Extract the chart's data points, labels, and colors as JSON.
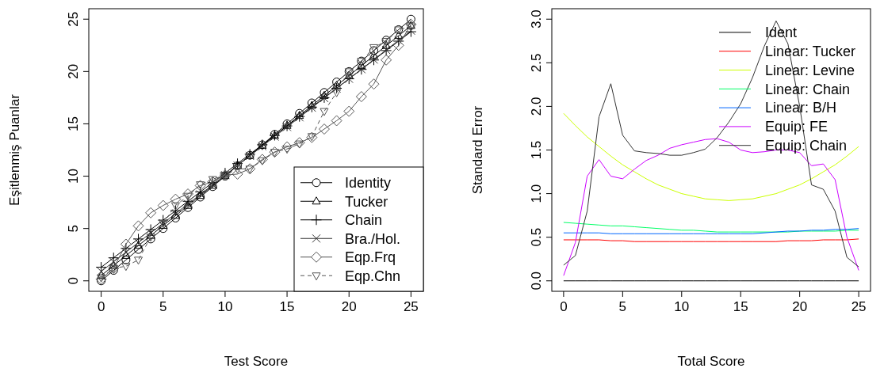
{
  "chart_data": [
    {
      "type": "line",
      "xlabel": "Test Score",
      "ylabel": "Eşitlenmiş Puanlar",
      "x": [
        0,
        1,
        2,
        3,
        4,
        5,
        6,
        7,
        8,
        9,
        10,
        11,
        12,
        13,
        14,
        15,
        16,
        17,
        18,
        19,
        20,
        21,
        22,
        23,
        24,
        25
      ],
      "xlim": [
        -1,
        26
      ],
      "ylim": [
        -1,
        26
      ],
      "xticks": [
        0,
        5,
        10,
        15,
        20,
        25
      ],
      "yticks": [
        0,
        5,
        10,
        15,
        20,
        25
      ],
      "legend": "bottom right",
      "series": [
        {
          "name": "Identity",
          "color": "#000000",
          "marker": "circle",
          "line_style": "solid",
          "values": [
            0,
            1,
            2,
            3,
            4,
            5,
            6,
            7,
            8,
            9,
            10,
            11,
            12,
            13,
            14,
            15,
            16,
            17,
            18,
            19,
            20,
            21,
            22,
            23,
            24,
            25
          ]
        },
        {
          "name": "Tucker",
          "color": "#000000",
          "marker": "triangle",
          "line_style": "solid",
          "values": [
            0.5,
            1.46,
            2.41,
            3.37,
            4.32,
            5.28,
            6.23,
            7.19,
            8.14,
            9.1,
            10.05,
            11.01,
            11.96,
            12.92,
            13.87,
            14.83,
            15.78,
            16.74,
            17.69,
            18.65,
            19.6,
            20.56,
            21.51,
            22.47,
            23.42,
            24.38
          ]
        },
        {
          "name": "Chain",
          "color": "#000000",
          "marker": "cross",
          "line_style": "solid",
          "values": [
            1.3,
            2.2,
            3.1,
            4.0,
            4.9,
            5.8,
            6.7,
            7.6,
            8.5,
            9.4,
            10.3,
            11.2,
            12.1,
            13.0,
            13.9,
            14.8,
            15.7,
            16.6,
            17.5,
            18.4,
            19.3,
            20.2,
            21.1,
            22.0,
            22.9,
            23.8
          ]
        },
        {
          "name": "Bra./Hol.",
          "color": "#333333",
          "marker": "x",
          "line_style": "solid",
          "values": [
            0.9,
            1.82,
            2.74,
            3.66,
            4.58,
            5.5,
            6.42,
            7.34,
            8.26,
            9.18,
            10.1,
            11.02,
            11.94,
            12.86,
            13.78,
            14.7,
            15.62,
            16.54,
            17.46,
            18.38,
            19.3,
            20.22,
            21.14,
            22.06,
            22.98,
            23.9
          ]
        },
        {
          "name": "Eqp.Frq",
          "color": "#555555",
          "marker": "diamond",
          "line_style": "solid",
          "values": [
            0.15,
            1.2,
            3.5,
            5.25,
            6.5,
            7.2,
            7.8,
            8.3,
            9.1,
            9.45,
            10.1,
            10.2,
            10.7,
            11.6,
            12.3,
            12.8,
            13.2,
            13.7,
            14.5,
            15.3,
            16.2,
            17.6,
            18.8,
            21.1,
            22.5,
            24.5
          ]
        },
        {
          "name": "Eqp.Chn",
          "color": "#555555",
          "marker": "triangle-down",
          "line_style": "dashed",
          "values": [
            0.3,
            1.2,
            1.4,
            2.0,
            4.2,
            5.5,
            7.2,
            8.1,
            9.2,
            9.7,
            10.1,
            10.7,
            10.7,
            11.5,
            12.3,
            12.6,
            13.1,
            13.8,
            16.2,
            18.0,
            20.0,
            21.0,
            22.3,
            22.9,
            24.0,
            24.3
          ]
        }
      ]
    },
    {
      "type": "line",
      "xlabel": "Total Score",
      "ylabel": "Standard Error",
      "x": [
        0,
        1,
        2,
        3,
        4,
        5,
        6,
        7,
        8,
        9,
        10,
        11,
        12,
        13,
        14,
        15,
        16,
        17,
        18,
        19,
        20,
        21,
        22,
        23,
        24,
        25
      ],
      "xlim": [
        -1,
        26
      ],
      "ylim": [
        -0.12,
        3.12
      ],
      "xticks": [
        0,
        5,
        10,
        15,
        20,
        25
      ],
      "yticks": [
        {
          "value": 0,
          "label": "0.0"
        },
        {
          "value": 0.5,
          "label": "0.5"
        },
        {
          "value": 1,
          "label": "1.0"
        },
        {
          "value": 1.5,
          "label": "1.5"
        },
        {
          "value": 2,
          "label": "2.0"
        },
        {
          "value": 2.5,
          "label": "2.5"
        },
        {
          "value": 3,
          "label": "3.0"
        }
      ],
      "legend": "top right",
      "series": [
        {
          "name": "Ident",
          "color": "#000000",
          "values": [
            0,
            0,
            0,
            0,
            0,
            0,
            0,
            0,
            0,
            0,
            0,
            0,
            0,
            0,
            0,
            0,
            0,
            0,
            0,
            0,
            0,
            0,
            0,
            0,
            0,
            0
          ]
        },
        {
          "name": "Linear: Tucker",
          "color": "#ff0000",
          "values": [
            0.47,
            0.47,
            0.47,
            0.47,
            0.46,
            0.46,
            0.45,
            0.45,
            0.45,
            0.45,
            0.45,
            0.45,
            0.45,
            0.45,
            0.45,
            0.45,
            0.45,
            0.45,
            0.45,
            0.46,
            0.46,
            0.46,
            0.47,
            0.47,
            0.47,
            0.48
          ]
        },
        {
          "name": "Linear: Levine",
          "color": "#ccff00",
          "values": [
            1.92,
            1.78,
            1.65,
            1.54,
            1.43,
            1.33,
            1.25,
            1.17,
            1.1,
            1.05,
            1.0,
            0.97,
            0.94,
            0.93,
            0.92,
            0.93,
            0.94,
            0.97,
            1.0,
            1.05,
            1.1,
            1.17,
            1.25,
            1.33,
            1.43,
            1.54
          ]
        },
        {
          "name": "Linear: Chain",
          "color": "#00ff66",
          "values": [
            0.67,
            0.66,
            0.65,
            0.64,
            0.63,
            0.63,
            0.62,
            0.61,
            0.6,
            0.59,
            0.58,
            0.58,
            0.57,
            0.56,
            0.56,
            0.56,
            0.56,
            0.56,
            0.56,
            0.56,
            0.57,
            0.57,
            0.57,
            0.57,
            0.58,
            0.58
          ]
        },
        {
          "name": "Linear: B/H",
          "color": "#0066ff",
          "values": [
            0.55,
            0.55,
            0.55,
            0.55,
            0.54,
            0.54,
            0.54,
            0.54,
            0.54,
            0.54,
            0.54,
            0.54,
            0.54,
            0.54,
            0.54,
            0.54,
            0.54,
            0.55,
            0.56,
            0.57,
            0.57,
            0.58,
            0.58,
            0.59,
            0.59,
            0.6
          ]
        },
        {
          "name": "Equip: FE",
          "color": "#cc00ff",
          "values": [
            0.06,
            0.44,
            1.2,
            1.39,
            1.2,
            1.17,
            1.28,
            1.38,
            1.44,
            1.52,
            1.56,
            1.59,
            1.62,
            1.63,
            1.59,
            1.5,
            1.47,
            1.48,
            1.5,
            1.5,
            1.47,
            1.32,
            1.34,
            1.16,
            0.5,
            0.12
          ]
        },
        {
          "name": "Equip: Chain",
          "color": "#333333",
          "values": [
            0.18,
            0.29,
            0.8,
            1.88,
            2.26,
            1.67,
            1.49,
            1.47,
            1.46,
            1.44,
            1.44,
            1.47,
            1.51,
            1.64,
            1.82,
            2.03,
            2.33,
            2.69,
            2.98,
            2.72,
            2.0,
            1.1,
            1.05,
            0.8,
            0.27,
            0.16
          ]
        }
      ]
    }
  ]
}
